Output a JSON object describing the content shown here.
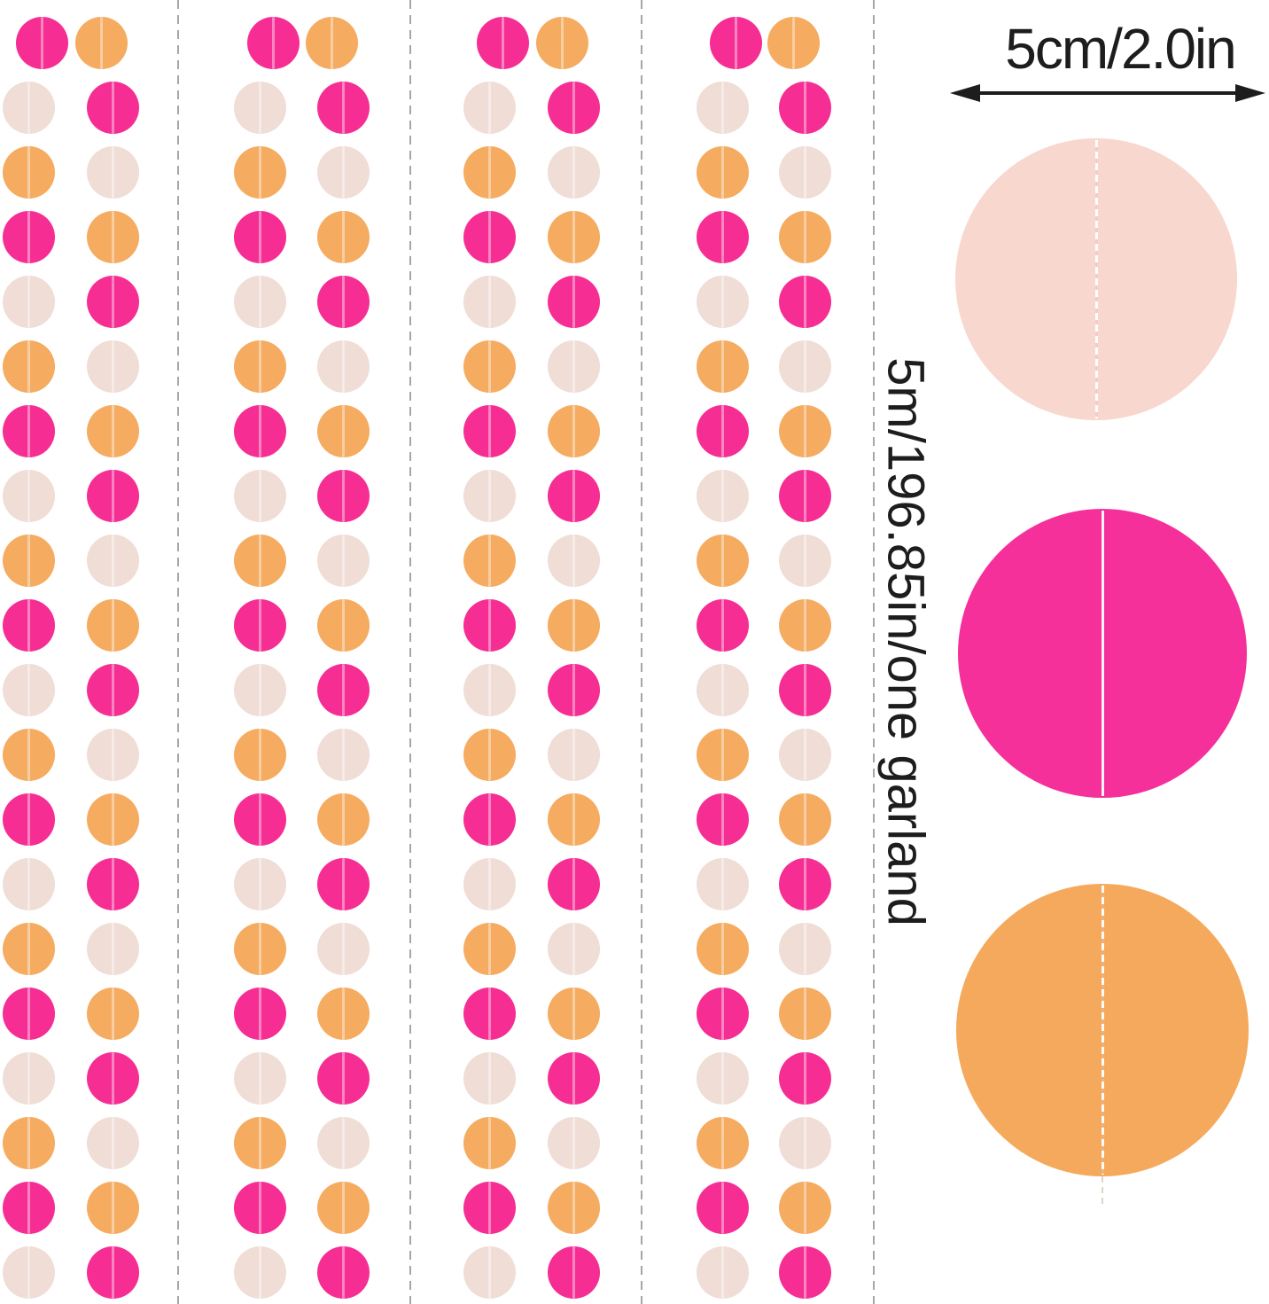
{
  "background": "#FFFFFF",
  "colors": {
    "pink": "#F62E93",
    "orange": "#F5AB60",
    "cream": "#EFDDD6",
    "dash": "#A6A6A6",
    "text": "#1D1D1D"
  },
  "measurements": {
    "diameter_label": "5cm/2.0in",
    "length_label": "5m/196.85in/one garland"
  },
  "garland": {
    "groups": 4,
    "columns_per_group": 2,
    "circles_per_column": 20,
    "left_column_sequence": [
      "pink",
      "cream",
      "orange"
    ],
    "right_column_sequence": [
      "orange",
      "pink",
      "cream"
    ]
  },
  "swatches": [
    {
      "name": "cream-sample-circle",
      "color": "#F8D7CF",
      "stitch": "dashed"
    },
    {
      "name": "pink-sample-circle",
      "color": "#F5309B",
      "stitch": "solid"
    },
    {
      "name": "orange-sample-circle",
      "color": "#F5A95C",
      "stitch": "dashed"
    }
  ],
  "icons": {
    "dimension_arrow": "double-headed-arrow"
  }
}
